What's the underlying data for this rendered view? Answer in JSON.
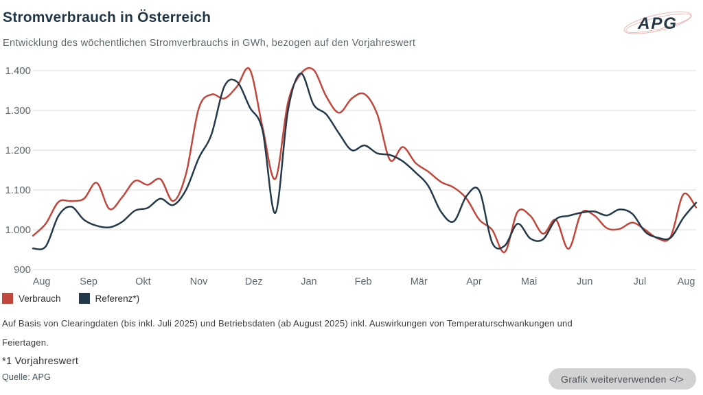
{
  "header": {
    "title": "Stromverbrauch in Österreich",
    "subtitle": "Entwicklung des wöchentlichen Stromverbrauchs in GWh, bezogen auf den Vorjahreswert",
    "logo_text": "APG"
  },
  "chart_data": {
    "type": "line",
    "title": "Stromverbrauch in Österreich",
    "ylabel": "GWh",
    "grid": "horizontal",
    "legend_position": "bottom-left",
    "y_axis": {
      "min": 900,
      "max": 1400,
      "step": 100,
      "tick_labels": [
        "900",
        "1.000",
        "1.100",
        "1.200",
        "1.300",
        "1.400"
      ]
    },
    "x_axis": {
      "months": [
        "Aug",
        "Sep",
        "Okt",
        "Nov",
        "Dez",
        "Jan",
        "Feb",
        "Mär",
        "Apr",
        "Mai",
        "Jun",
        "Jul",
        "Aug"
      ],
      "month_positions": [
        0.013,
        0.084,
        0.166,
        0.25,
        0.333,
        0.416,
        0.498,
        0.582,
        0.665,
        0.748,
        0.832,
        0.915,
        0.985
      ]
    },
    "series": [
      {
        "name": "Verbrauch",
        "color": "#c1463b",
        "values": [
          985,
          1015,
          1070,
          1072,
          1078,
          1118,
          1052,
          1082,
          1123,
          1113,
          1127,
          1072,
          1140,
          1305,
          1340,
          1330,
          1360,
          1403,
          1258,
          1128,
          1320,
          1392,
          1402,
          1335,
          1294,
          1330,
          1341,
          1290,
          1175,
          1208,
          1168,
          1146,
          1120,
          1106,
          1078,
          1025,
          1000,
          944,
          1045,
          1035,
          990,
          1025,
          952,
          1042,
          1036,
          1004,
          1002,
          1018,
          1000,
          978,
          982,
          1089,
          1056
        ]
      },
      {
        "name": "Referenz*)",
        "color": "#24394a",
        "values": [
          953,
          958,
          1035,
          1058,
          1025,
          1010,
          1006,
          1020,
          1048,
          1055,
          1078,
          1062,
          1100,
          1180,
          1240,
          1360,
          1372,
          1308,
          1250,
          1042,
          1300,
          1393,
          1315,
          1290,
          1242,
          1200,
          1212,
          1192,
          1188,
          1172,
          1144,
          1110,
          1045,
          1021,
          1085,
          1098,
          968,
          960,
          1015,
          978,
          976,
          1026,
          1035,
          1043,
          1046,
          1036,
          1051,
          1040,
          995,
          980,
          980,
          1030,
          1068
        ]
      }
    ]
  },
  "legend": {
    "items": [
      {
        "label": "Verbrauch",
        "color": "#c1463b"
      },
      {
        "label": "Referenz*)",
        "color": "#24394a"
      }
    ]
  },
  "footnotes": {
    "basis": "Auf Basis von Clearingdaten (bis inkl. Juli 2025) und Betriebsdaten (ab August 2025) inkl. Auswirkungen von Temperaturschwankungen und Feiertagen.",
    "reference_note": "*1 Vorjahreswert",
    "source": "Quelle: APG"
  },
  "actions": {
    "reuse_button_label": "Grafik weiterverwenden </>"
  },
  "colors": {
    "accent_red": "#c1463b",
    "accent_navy": "#24394a",
    "grid": "#d9d9d9",
    "logo_swoosh": "#e7b7b2"
  }
}
